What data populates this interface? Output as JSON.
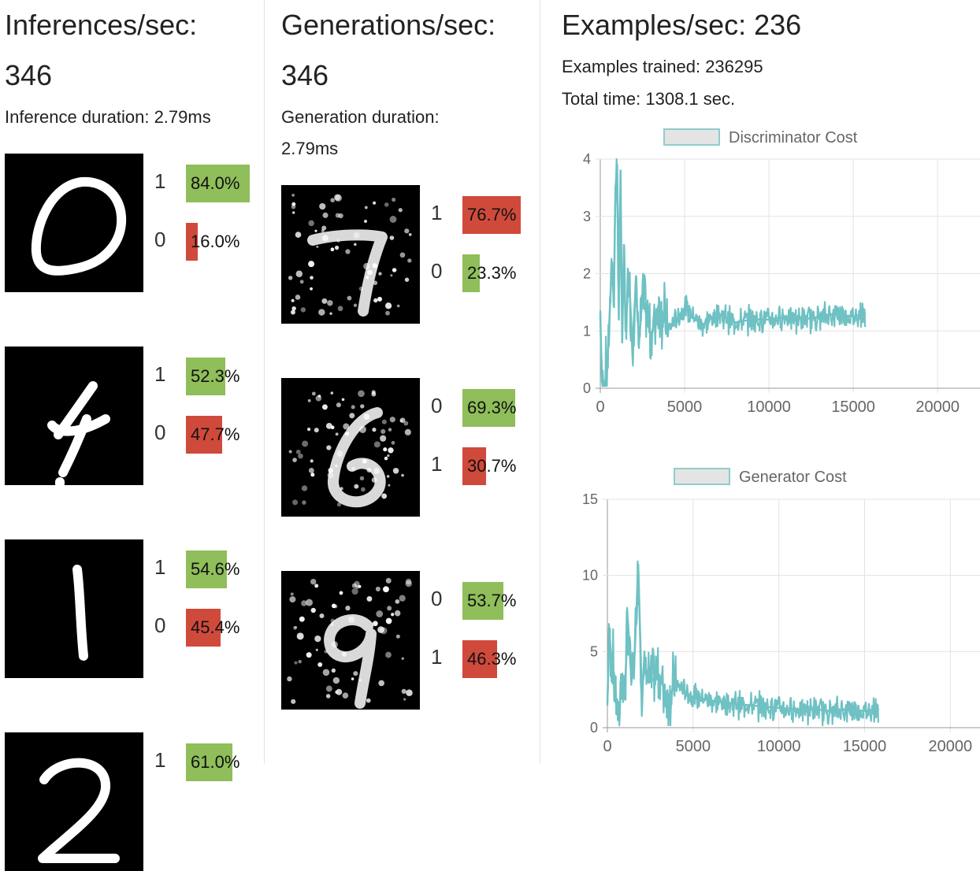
{
  "colors": {
    "positive_bar": "#8fbe5a",
    "negative_bar": "#d04a3c",
    "line": "#6fc1c3",
    "legend_fill": "#e4e4e4",
    "legend_stroke": "#8fcccc"
  },
  "inference": {
    "rate_label": "Inferences/sec:",
    "rate_value": "346",
    "duration": "Inference duration: 2.79ms",
    "samples": [
      {
        "digit": "0",
        "preds": [
          {
            "label": "1",
            "value": 84.0,
            "text": "84.0%"
          },
          {
            "label": "0",
            "value": 16.0,
            "text": "16.0%"
          }
        ]
      },
      {
        "digit": "4",
        "preds": [
          {
            "label": "1",
            "value": 52.3,
            "text": "52.3%"
          },
          {
            "label": "0",
            "value": 47.7,
            "text": "47.7%"
          }
        ]
      },
      {
        "digit": "1",
        "preds": [
          {
            "label": "1",
            "value": 54.6,
            "text": "54.6%"
          },
          {
            "label": "0",
            "value": 45.4,
            "text": "45.4%"
          }
        ]
      },
      {
        "digit": "2",
        "preds": [
          {
            "label": "1",
            "value": 61.0,
            "text": "61.0%"
          }
        ]
      }
    ]
  },
  "generation": {
    "rate_label": "Generations/sec:",
    "rate_value": "346",
    "duration_line1": "Generation duration:",
    "duration_line2": "2.79ms",
    "samples": [
      {
        "digit": "7",
        "preds": [
          {
            "label": "1",
            "value": 76.7,
            "text": "76.7%"
          },
          {
            "label": "0",
            "value": 23.3,
            "text": "23.3%"
          }
        ]
      },
      {
        "digit": "6",
        "preds": [
          {
            "label": "0",
            "value": 69.3,
            "text": "69.3%"
          },
          {
            "label": "1",
            "value": 30.7,
            "text": "30.7%"
          }
        ]
      },
      {
        "digit": "9",
        "preds": [
          {
            "label": "0",
            "value": 53.7,
            "text": "53.7%"
          },
          {
            "label": "1",
            "value": 46.3,
            "text": "46.3%"
          }
        ]
      }
    ]
  },
  "examples": {
    "rate": "Examples/sec: 236",
    "trained": "Examples trained: 236295",
    "total_time": "Total time: 1308.1 sec."
  },
  "chart_data": [
    {
      "type": "line",
      "title": "",
      "series": [
        {
          "name": "Discriminator Cost"
        }
      ],
      "xlim": [
        0,
        22000
      ],
      "ylim": [
        0,
        4
      ],
      "xticks": [
        "0",
        "5000",
        "10000",
        "15000",
        "20000"
      ],
      "yticks": [
        "0",
        "1",
        "2",
        "3",
        "4"
      ],
      "grid": true,
      "legend": "top",
      "x": [
        0,
        100,
        200,
        300,
        400,
        500,
        600,
        700,
        800,
        900,
        1000,
        1100,
        1200,
        1300,
        1400,
        1500,
        1700,
        1900,
        2100,
        2300,
        2500,
        3000,
        3500,
        4000,
        5000,
        6000,
        7000,
        8000,
        9000,
        10000,
        11000,
        12000,
        13000,
        14000,
        15000,
        15700
      ],
      "y": [
        1.3,
        0.1,
        0.08,
        0.15,
        0.3,
        0.9,
        1.6,
        2.2,
        1.5,
        3.5,
        3.9,
        1.2,
        3.8,
        0.8,
        2.5,
        1.0,
        2.0,
        0.7,
        1.8,
        0.8,
        1.6,
        0.9,
        1.5,
        1.0,
        1.4,
        1.1,
        1.3,
        1.15,
        1.2,
        1.2,
        1.25,
        1.2,
        1.25,
        1.3,
        1.25,
        1.3
      ]
    },
    {
      "type": "line",
      "title": "",
      "series": [
        {
          "name": "Generator Cost"
        }
      ],
      "xlim": [
        0,
        21500
      ],
      "ylim": [
        0,
        15
      ],
      "xticks": [
        "0",
        "5000",
        "10000",
        "15000",
        "20000"
      ],
      "yticks": [
        "0",
        "5",
        "10",
        "15"
      ],
      "grid": true,
      "legend": "top",
      "x": [
        0,
        100,
        200,
        300,
        400,
        500,
        600,
        700,
        800,
        1000,
        1200,
        1400,
        1600,
        1800,
        2000,
        2200,
        2500,
        3000,
        3500,
        4000,
        5000,
        6000,
        7000,
        8000,
        9000,
        10000,
        11000,
        12000,
        13000,
        14000,
        15000,
        15800
      ],
      "y": [
        1.5,
        6.5,
        5.0,
        4.0,
        3.5,
        2.0,
        1.0,
        0.5,
        3.5,
        2.0,
        7.0,
        3.0,
        5.0,
        10.7,
        2.5,
        4.0,
        3.0,
        3.5,
        2.0,
        2.8,
        2.0,
        1.8,
        1.6,
        1.5,
        1.4,
        1.3,
        1.2,
        1.2,
        1.1,
        1.2,
        1.1,
        1.2
      ]
    }
  ]
}
